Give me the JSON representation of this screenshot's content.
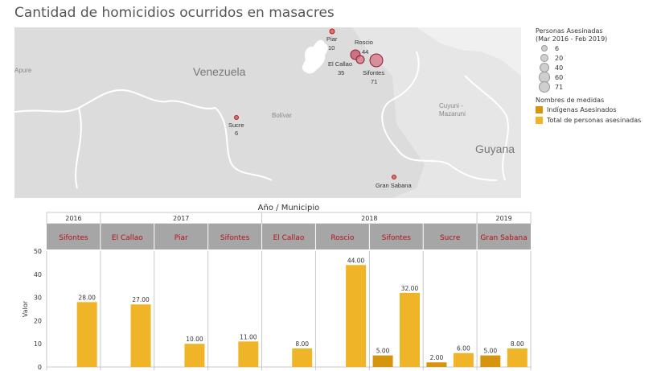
{
  "title": "Cantidad de homicidios ocurridos en masacres",
  "map": {
    "regions": [
      "Venezuela",
      "Bolívar",
      "Apure",
      "Cuyuni - Mazaruni",
      "Guyana"
    ],
    "points": [
      {
        "name": "Piar",
        "value": 10
      },
      {
        "name": "Roscio",
        "value": 44
      },
      {
        "name": "El Callao",
        "value": 35
      },
      {
        "name": "Sifontes",
        "value": 71
      },
      {
        "name": "Sucre",
        "value": 6
      },
      {
        "name": "Gran Sabana",
        "value": 8
      }
    ]
  },
  "legend": {
    "size_title_line1": "Personas Asesinadas",
    "size_title_line2": "(Mar 2016 - Feb 2019)",
    "sizes": [
      6,
      20,
      40,
      60,
      71
    ],
    "measures_title": "Nombres de medidas",
    "measures": [
      {
        "label": "Indígenas Asesinados",
        "color": "#d6950f"
      },
      {
        "label": "Total de personas asesinadas",
        "color": "#f0b429"
      }
    ]
  },
  "chart_data": {
    "type": "bar",
    "title": "Año / Municipio",
    "ylabel": "Valor",
    "ylim": [
      0,
      50
    ],
    "yticks": [
      0,
      10,
      20,
      30,
      40,
      50
    ],
    "years": [
      {
        "label": "2016",
        "span": 1
      },
      {
        "label": "2017",
        "span": 3
      },
      {
        "label": "2018",
        "span": 4
      },
      {
        "label": "2019",
        "span": 1
      }
    ],
    "categories": [
      "Sifontes",
      "El Callao",
      "Piar",
      "Sifontes",
      "El Callao",
      "Roscio",
      "Sifontes",
      "Sucre",
      "Gran Sabana"
    ],
    "series": [
      {
        "name": "Indígenas Asesinados",
        "color": "#d6950f",
        "values": [
          null,
          null,
          null,
          null,
          null,
          null,
          5,
          2,
          5
        ]
      },
      {
        "name": "Total de personas asesinadas",
        "color": "#f0b429",
        "values": [
          28,
          27,
          10,
          11,
          8,
          44,
          32,
          6,
          8
        ]
      }
    ]
  }
}
